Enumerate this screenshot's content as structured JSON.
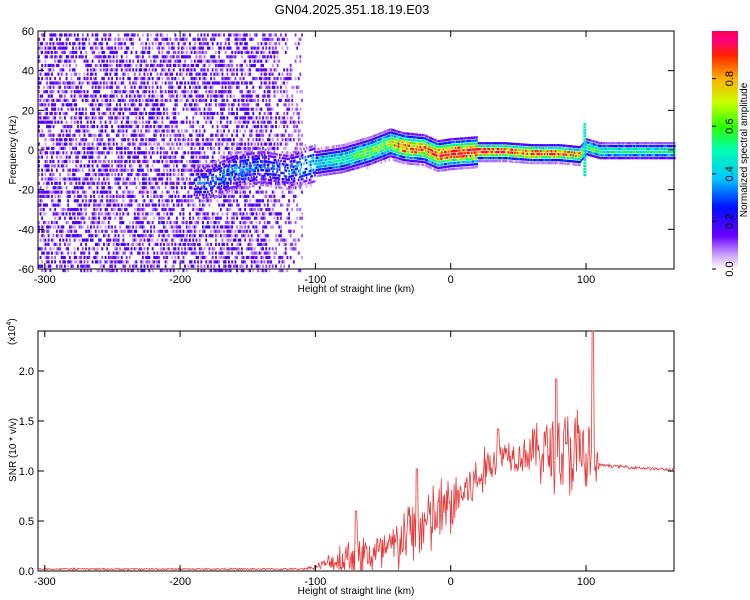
{
  "title": "GN04.2025.351.18.19.E03",
  "chart_data": [
    {
      "type": "heatmap",
      "xlabel": "Height of straight line (km)",
      "ylabel": "Frequency (Hz)",
      "xlim": [
        -305,
        165
      ],
      "ylim": [
        -60,
        60
      ],
      "xticks": [
        -300,
        -200,
        -100,
        0,
        100
      ],
      "yticks": [
        -60,
        -40,
        -20,
        0,
        20,
        40,
        60
      ],
      "colorbar": {
        "label": "Normalized spectral amplitude",
        "range": [
          0.0,
          1.0
        ],
        "ticks": [
          0.0,
          0.2,
          0.4,
          0.6,
          0.8
        ]
      },
      "ridge": {
        "x": [
          -180,
          -160,
          -140,
          -120,
          -100,
          -80,
          -60,
          -45,
          -35,
          -20,
          -10,
          0,
          20,
          40,
          60,
          80,
          95,
          100,
          110,
          130,
          165
        ],
        "freq": [
          -16,
          -10,
          -8,
          -10,
          -6,
          -4,
          0,
          4,
          2,
          1,
          -2,
          -1,
          0,
          0,
          -1,
          -1,
          -2,
          2,
          0,
          0,
          0
        ],
        "amplitude": [
          0.3,
          0.35,
          0.3,
          0.3,
          0.4,
          0.5,
          0.6,
          0.7,
          0.9,
          0.85,
          0.9,
          0.95,
          0.95,
          0.9,
          0.9,
          0.85,
          0.8,
          0.6,
          0.5,
          0.5,
          0.5
        ]
      },
      "noise_region_x": [
        -305,
        -110
      ]
    },
    {
      "type": "line",
      "xlabel": "Height of straight line (km)",
      "ylabel": "SNR (10 * v/v)",
      "y_exponent_label": "(x10",
      "y_exponent_power": "4",
      "xlim": [
        -305,
        165
      ],
      "ylim": [
        0,
        2.4
      ],
      "xticks": [
        -300,
        -200,
        -100,
        0,
        100
      ],
      "yticks": [
        0.0,
        0.5,
        1.0,
        1.5,
        2.0
      ],
      "ytick_labels": [
        "0.0",
        "0.5",
        "1.0",
        "1.5",
        "2.0"
      ],
      "color": "#e8393a",
      "envelope": {
        "x": [
          -305,
          -110,
          -100,
          -90,
          -80,
          -70,
          -60,
          -50,
          -40,
          -30,
          -20,
          -10,
          0,
          10,
          20,
          30,
          40,
          50,
          60,
          70,
          80,
          90,
          100,
          105,
          110,
          130,
          165
        ],
        "base": [
          0.02,
          0.02,
          0.04,
          0.08,
          0.12,
          0.18,
          0.15,
          0.18,
          0.25,
          0.4,
          0.45,
          0.55,
          0.65,
          0.8,
          0.9,
          1.1,
          1.2,
          1.15,
          1.2,
          1.2,
          1.2,
          1.15,
          1.1,
          1.05,
          1.06,
          1.04,
          1.01
        ],
        "amp": [
          0.01,
          0.01,
          0.03,
          0.1,
          0.25,
          0.35,
          0.3,
          0.3,
          0.35,
          0.4,
          0.45,
          0.45,
          0.4,
          0.35,
          0.3,
          0.25,
          0.2,
          0.2,
          0.3,
          0.45,
          0.55,
          0.6,
          0.7,
          0.5,
          0.02,
          0.02,
          0.02
        ]
      },
      "peaks": [
        {
          "x": -70,
          "y": 0.6
        },
        {
          "x": -25,
          "y": 1.02
        },
        {
          "x": 35,
          "y": 1.42
        },
        {
          "x": 78,
          "y": 1.92
        },
        {
          "x": 105,
          "y": 2.42
        }
      ]
    }
  ]
}
